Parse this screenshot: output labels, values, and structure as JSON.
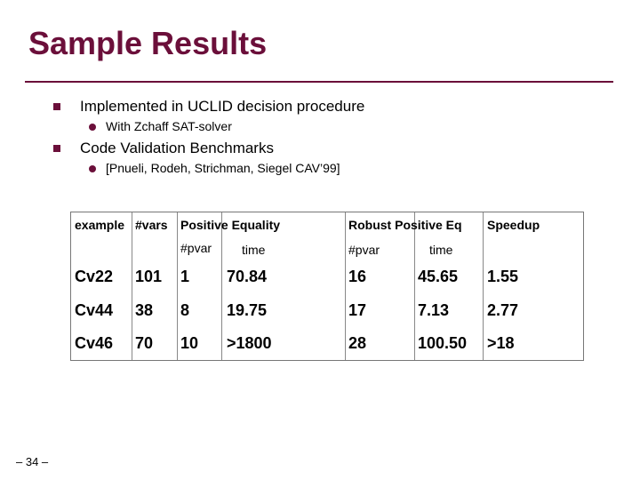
{
  "slide": {
    "title": "Sample Results",
    "bullets": [
      {
        "text": "Implemented in UCLID decision procedure",
        "sub": "With Zchaff SAT-solver"
      },
      {
        "text": "Code Validation Benchmarks",
        "sub": "[Pnueli, Rodeh, Strichman, Siegel CAV’99]"
      }
    ],
    "page_number": "– 34 –"
  },
  "table": {
    "header1": [
      "example",
      "#vars",
      "Positive Equality",
      "Robust Positive Eq",
      "Speedup"
    ],
    "header2": [
      "#pvar",
      "time",
      "#pvar",
      "time"
    ],
    "rows": [
      [
        "Cv22",
        "101",
        "1",
        "70.84",
        "16",
        "45.65",
        "1.55"
      ],
      [
        "Cv44",
        "38",
        "8",
        "19.75",
        "17",
        "7.13",
        "2.77"
      ],
      [
        "Cv46",
        "70",
        "10",
        ">1800",
        "28",
        "100.50",
        ">18"
      ]
    ]
  },
  "colors": {
    "title": "#6b0f3a",
    "bullet": "#6b0f3a"
  }
}
